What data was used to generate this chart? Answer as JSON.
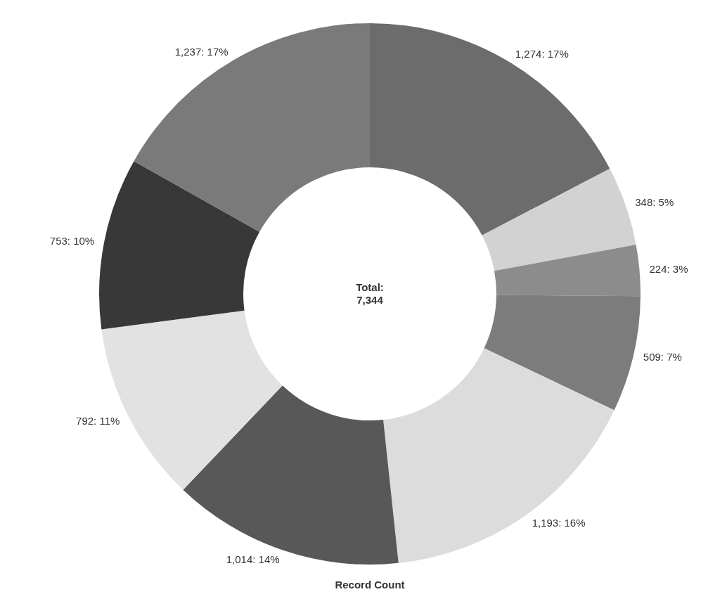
{
  "chart_data": {
    "type": "donut",
    "xlabel": "Record Count",
    "annotations": [
      "Total:\n7,344"
    ],
    "categories": [
      null,
      null,
      null,
      null,
      null,
      null,
      null,
      null,
      null
    ],
    "values": [
      1274,
      348,
      224,
      509,
      1193,
      1014,
      792,
      753,
      1237
    ],
    "value_labels": [
      "1,274: 17%",
      "348: 5%",
      "224: 3%",
      "509: 7%",
      "1,193: 16%",
      "1,014: 14%",
      "792: 11%",
      "753: 10%",
      "1,237: 17%"
    ],
    "colors": [
      "#6c6c6c",
      "#d2d2d2",
      "#8c8c8c",
      "#7c7c7c",
      "#dcdcdc",
      "#585858",
      "#e2e2e2",
      "#383838",
      "#7a7a7a"
    ]
  }
}
